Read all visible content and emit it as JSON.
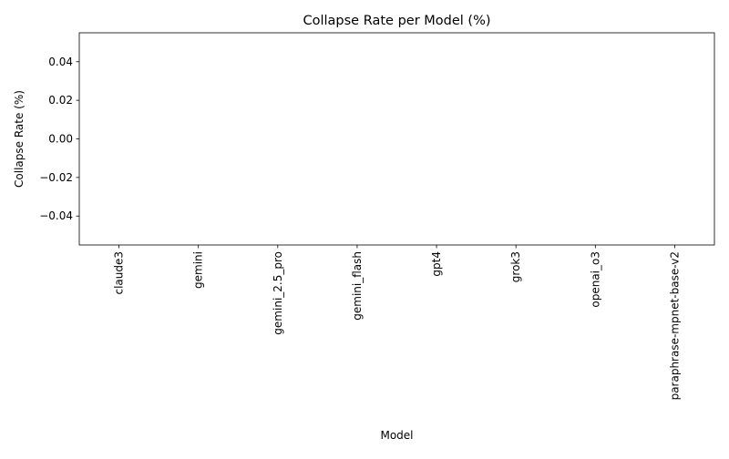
{
  "chart_data": {
    "type": "bar",
    "title": "Collapse Rate per Model (%)",
    "xlabel": "Model",
    "ylabel": "Collapse Rate (%)",
    "categories": [
      "claude3",
      "gemini",
      "gemini_2.5_pro",
      "gemini_flash",
      "gpt4",
      "grok3",
      "openai_o3",
      "paraphrase-mpnet-base-v2"
    ],
    "values": [
      0,
      0,
      0,
      0,
      0,
      0,
      0,
      0
    ],
    "ylim": [
      -0.055,
      0.055
    ],
    "yticks": [
      0.04,
      0.02,
      0.0,
      -0.02,
      -0.04
    ],
    "ytick_labels": [
      "0.04",
      "0.02",
      "0.00",
      "−0.02",
      "−0.04"
    ],
    "grid": false,
    "legend": "none",
    "colors": {
      "bar": "#1f77b4",
      "axes": "#000000",
      "background": "#ffffff"
    }
  }
}
